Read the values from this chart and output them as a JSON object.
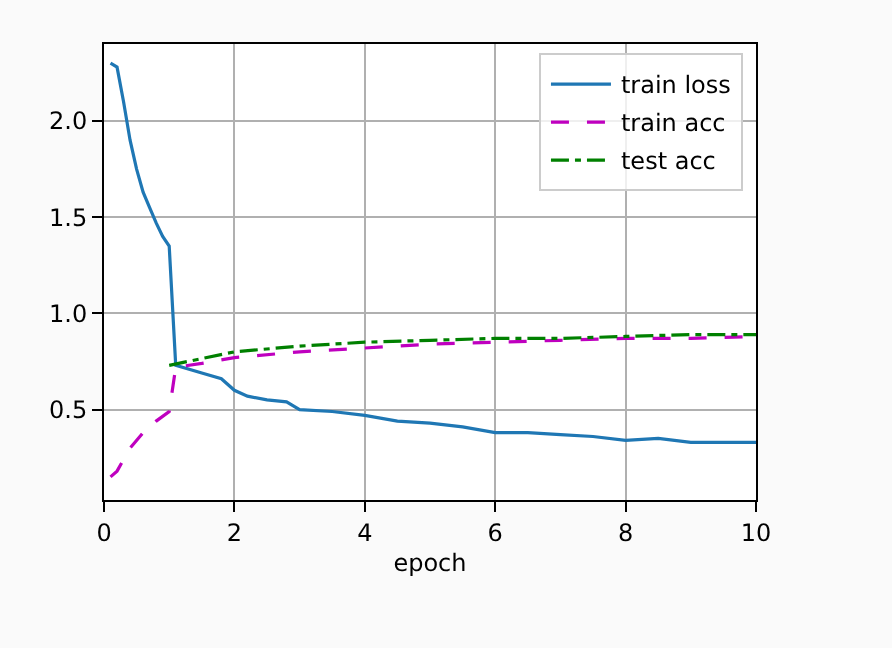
{
  "chart_data": {
    "type": "line",
    "xlabel": "epoch",
    "xlim": [
      0,
      10
    ],
    "xticks": [
      0,
      2,
      4,
      6,
      8,
      10
    ],
    "ylim": [
      0.03,
      2.4
    ],
    "yticks": [
      {
        "value": 0.5,
        "label": "0.5"
      },
      {
        "value": 1.0,
        "label": "1.0"
      },
      {
        "value": 1.5,
        "label": "1.5"
      },
      {
        "value": 2.0,
        "label": "2.0"
      }
    ],
    "grid": true,
    "legend": "top right",
    "marker": "none",
    "series": [
      {
        "name": "train loss",
        "color": "#1f77b4",
        "line_style": "solid",
        "x": [
          0.1,
          0.2,
          0.3,
          0.4,
          0.5,
          0.6,
          0.7,
          0.8,
          0.9,
          1.0,
          1.1,
          1.5,
          1.8,
          2.0,
          2.2,
          2.5,
          2.8,
          3.0,
          3.5,
          4.0,
          4.5,
          5.0,
          5.5,
          6.0,
          6.5,
          7.0,
          7.5,
          8.0,
          8.5,
          9.0,
          9.5,
          10.0
        ],
        "values": [
          2.3,
          2.28,
          2.1,
          1.9,
          1.75,
          1.63,
          1.55,
          1.47,
          1.4,
          1.35,
          0.73,
          0.69,
          0.66,
          0.6,
          0.57,
          0.55,
          0.54,
          0.5,
          0.49,
          0.47,
          0.44,
          0.43,
          0.41,
          0.38,
          0.38,
          0.37,
          0.36,
          0.34,
          0.35,
          0.33,
          0.33,
          0.33
        ]
      },
      {
        "name": "train acc",
        "color": "#bf00bf",
        "line_style": "dashed",
        "x": [
          0.1,
          0.2,
          0.4,
          0.6,
          0.8,
          1.0,
          1.1,
          1.5,
          2.0,
          3.0,
          4.0,
          5.0,
          6.0,
          7.0,
          8.0,
          9.0,
          10.0
        ],
        "values": [
          0.15,
          0.18,
          0.3,
          0.38,
          0.44,
          0.49,
          0.72,
          0.74,
          0.77,
          0.8,
          0.82,
          0.84,
          0.85,
          0.86,
          0.87,
          0.87,
          0.88
        ]
      },
      {
        "name": "test acc",
        "color": "#008000",
        "line_style": "dashdot",
        "x": [
          1,
          2,
          3,
          4,
          5,
          6,
          7,
          8,
          9,
          10
        ],
        "values": [
          0.73,
          0.8,
          0.83,
          0.85,
          0.86,
          0.87,
          0.87,
          0.88,
          0.89,
          0.89
        ]
      }
    ]
  }
}
